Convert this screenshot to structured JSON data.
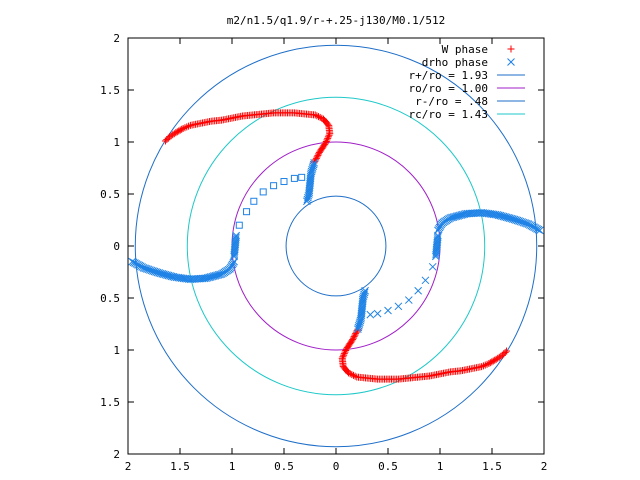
{
  "chart_data": {
    "type": "scatter",
    "title": "m2/n1.5/q1.9/r-+.25-j130/M0.1/512",
    "xlim": [
      -2,
      2
    ],
    "ylim": [
      -2,
      2
    ],
    "x_ticks": [
      {
        "value": -2,
        "label": "2"
      },
      {
        "value": -1.5,
        "label": "1.5"
      },
      {
        "value": -1,
        "label": "1"
      },
      {
        "value": -0.5,
        "label": "0.5"
      },
      {
        "value": 0,
        "label": "0"
      },
      {
        "value": 0.5,
        "label": "0.5"
      },
      {
        "value": 1,
        "label": "1"
      },
      {
        "value": 1.5,
        "label": "1.5"
      },
      {
        "value": 2,
        "label": "2"
      }
    ],
    "y_ticks": [
      {
        "value": 2,
        "label": "2"
      },
      {
        "value": 1.5,
        "label": "1.5"
      },
      {
        "value": 1,
        "label": "1"
      },
      {
        "value": 0.5,
        "label": "0.5"
      },
      {
        "value": 0,
        "label": "0"
      },
      {
        "value": -0.5,
        "label": "0.5"
      },
      {
        "value": -1,
        "label": "1"
      },
      {
        "value": -1.5,
        "label": "1.5"
      },
      {
        "value": -2,
        "label": "2"
      }
    ],
    "legend_position": "top-right",
    "grid": false,
    "circles": [
      {
        "name": "r+/ro = 1.93",
        "r": 1.93,
        "color": "#1e6ec8"
      },
      {
        "name": "ro/ro = 1.00",
        "r": 1.0,
        "color": "#a01ec8"
      },
      {
        "name": "r-/ro = .48",
        "r": 0.48,
        "color": "#1e6ec8"
      },
      {
        "name": "rc/ro = 1.43",
        "r": 1.43,
        "color": "#1ec8c8"
      }
    ],
    "series": [
      {
        "name": "W phase",
        "marker": "plus",
        "color": "#ff0000",
        "points": [
          [
            -1.64,
            1.01
          ],
          [
            -1.6,
            1.05
          ],
          [
            -1.54,
            1.09
          ],
          [
            -1.47,
            1.13
          ],
          [
            -1.4,
            1.16
          ],
          [
            -1.3,
            1.18
          ],
          [
            -1.2,
            1.2
          ],
          [
            -1.1,
            1.21
          ],
          [
            -1.0,
            1.23
          ],
          [
            -0.9,
            1.25
          ],
          [
            -0.8,
            1.26
          ],
          [
            -0.7,
            1.27
          ],
          [
            -0.6,
            1.28
          ],
          [
            -0.5,
            1.28
          ],
          [
            -0.4,
            1.28
          ],
          [
            -0.3,
            1.27
          ],
          [
            -0.2,
            1.26
          ],
          [
            -0.12,
            1.22
          ],
          [
            -0.07,
            1.16
          ],
          [
            -0.06,
            1.08
          ],
          [
            -0.1,
            0.99
          ],
          [
            -0.16,
            0.9
          ],
          [
            -0.21,
            0.8
          ],
          [
            1.64,
            -1.01
          ],
          [
            1.6,
            -1.05
          ],
          [
            1.54,
            -1.09
          ],
          [
            1.47,
            -1.13
          ],
          [
            1.4,
            -1.16
          ],
          [
            1.3,
            -1.18
          ],
          [
            1.2,
            -1.2
          ],
          [
            1.1,
            -1.21
          ],
          [
            1.0,
            -1.23
          ],
          [
            0.9,
            -1.25
          ],
          [
            0.8,
            -1.26
          ],
          [
            0.7,
            -1.27
          ],
          [
            0.6,
            -1.28
          ],
          [
            0.5,
            -1.28
          ],
          [
            0.4,
            -1.28
          ],
          [
            0.3,
            -1.27
          ],
          [
            0.2,
            -1.26
          ],
          [
            0.12,
            -1.22
          ],
          [
            0.07,
            -1.16
          ],
          [
            0.06,
            -1.08
          ],
          [
            0.1,
            -0.99
          ],
          [
            0.16,
            -0.9
          ],
          [
            0.21,
            -0.8
          ]
        ]
      },
      {
        "name": "drho phase",
        "marker": "cross",
        "color": "#1e82e6",
        "points": [
          [
            -0.21,
            0.8
          ],
          [
            -0.24,
            0.7
          ],
          [
            -0.25,
            0.6
          ],
          [
            -0.26,
            0.5
          ],
          [
            -0.28,
            0.43
          ],
          [
            -0.98,
            -0.15
          ],
          [
            -1.02,
            -0.22
          ],
          [
            -1.1,
            -0.27
          ],
          [
            -1.25,
            -0.31
          ],
          [
            -1.4,
            -0.32
          ],
          [
            -1.55,
            -0.3
          ],
          [
            -1.7,
            -0.26
          ],
          [
            -1.85,
            -0.21
          ],
          [
            -1.96,
            -0.15
          ],
          [
            -0.98,
            -0.1
          ],
          [
            -0.97,
            0.0
          ],
          [
            -0.96,
            0.1
          ],
          [
            0.21,
            -0.8
          ],
          [
            0.24,
            -0.7
          ],
          [
            0.25,
            -0.6
          ],
          [
            0.26,
            -0.5
          ],
          [
            0.28,
            -0.43
          ],
          [
            0.98,
            0.15
          ],
          [
            1.02,
            0.22
          ],
          [
            1.1,
            0.27
          ],
          [
            1.25,
            0.31
          ],
          [
            1.4,
            0.32
          ],
          [
            1.55,
            0.3
          ],
          [
            1.7,
            0.26
          ],
          [
            1.85,
            0.21
          ],
          [
            1.96,
            0.15
          ],
          [
            0.98,
            0.1
          ],
          [
            0.97,
            0.0
          ],
          [
            0.96,
            -0.1
          ]
        ]
      },
      {
        "name": "drho phase sparse",
        "marker": "square",
        "color": "#1e82e6",
        "points": [
          [
            -0.93,
            0.2
          ],
          [
            -0.86,
            0.33
          ],
          [
            -0.79,
            0.43
          ],
          [
            -0.7,
            0.52
          ],
          [
            -0.6,
            0.58
          ],
          [
            -0.5,
            0.62
          ],
          [
            -0.4,
            0.65
          ],
          [
            -0.33,
            0.66
          ]
        ]
      },
      {
        "name": "drho phase sparse 2",
        "marker": "cross",
        "color": "#1e82e6",
        "points": [
          [
            0.93,
            -0.2
          ],
          [
            0.86,
            -0.33
          ],
          [
            0.79,
            -0.43
          ],
          [
            0.7,
            -0.52
          ],
          [
            0.6,
            -0.58
          ],
          [
            0.5,
            -0.62
          ],
          [
            0.4,
            -0.65
          ],
          [
            0.33,
            -0.66
          ]
        ]
      }
    ],
    "legend": [
      {
        "label": "W phase",
        "marker": "plus",
        "color": "#ff0000"
      },
      {
        "label": "drho phase",
        "marker": "cross",
        "color": "#1e82e6"
      },
      {
        "label": "r+/ro = 1.93",
        "marker": "line",
        "color": "#1e6ec8"
      },
      {
        "label": "ro/ro = 1.00",
        "marker": "line",
        "color": "#a01ec8"
      },
      {
        "label": "r-/ro = .48",
        "marker": "line",
        "color": "#1e6ec8"
      },
      {
        "label": "rc/ro = 1.43",
        "marker": "line",
        "color": "#1ec8c8"
      }
    ]
  }
}
